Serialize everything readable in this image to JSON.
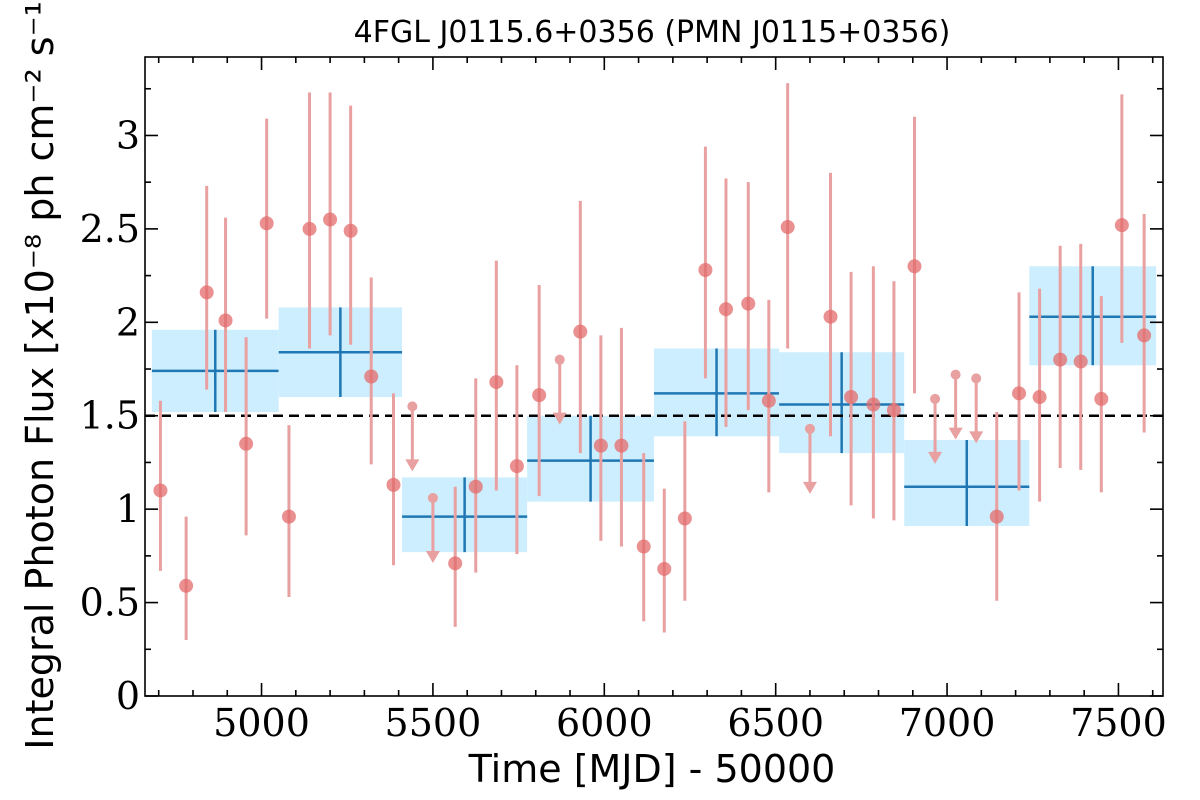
{
  "chart_data": {
    "type": "scatter",
    "title": "4FGL J0115.6+0356 (PMN J0115+0356)",
    "xlabel": "Time [MJD] - 50000",
    "ylabel": "Integral Photon Flux [x10⁻⁸ ph cm⁻² s⁻¹]",
    "xlim": [
      4660,
      7630
    ],
    "ylim": [
      0,
      3.42
    ],
    "x_ticks": [
      5000,
      5500,
      6000,
      6500,
      7000,
      7500
    ],
    "x_tick_labels": [
      "5000",
      "5500",
      "6000",
      "6500",
      "7000",
      "7500"
    ],
    "y_ticks": [
      0,
      0.5,
      1,
      1.5,
      2,
      2.5,
      3
    ],
    "y_tick_labels": [
      "0",
      "0.5",
      "1",
      "1.5",
      "2",
      "2.5",
      "3"
    ],
    "reference_line": 1.5,
    "colors": {
      "points": "#e36b6b",
      "error_bars": "#e8a0a0",
      "blocks_fill": "#cdeefe",
      "blocks_line": "#1f77b4",
      "reference_line": "#000000"
    },
    "points": [
      {
        "x": 4705,
        "y": 1.1,
        "ylo": 0.67,
        "yhi": 1.58
      },
      {
        "x": 4780,
        "y": 0.59,
        "ylo": 0.3,
        "yhi": 0.96
      },
      {
        "x": 4840,
        "y": 2.16,
        "ylo": 1.64,
        "yhi": 2.73
      },
      {
        "x": 4895,
        "y": 2.01,
        "ylo": 1.52,
        "yhi": 2.56
      },
      {
        "x": 4955,
        "y": 1.35,
        "ylo": 0.86,
        "yhi": 1.92
      },
      {
        "x": 5015,
        "y": 2.53,
        "ylo": 2.02,
        "yhi": 3.09
      },
      {
        "x": 5080,
        "y": 0.96,
        "ylo": 0.53,
        "yhi": 1.45
      },
      {
        "x": 5140,
        "y": 2.5,
        "ylo": 1.86,
        "yhi": 3.23
      },
      {
        "x": 5200,
        "y": 2.55,
        "ylo": 1.93,
        "yhi": 3.23
      },
      {
        "x": 5260,
        "y": 2.49,
        "ylo": 1.88,
        "yhi": 3.16
      },
      {
        "x": 5320,
        "y": 1.71,
        "ylo": 1.24,
        "yhi": 2.24
      },
      {
        "x": 5385,
        "y": 1.13,
        "ylo": 0.7,
        "yhi": 1.62
      },
      {
        "x": 5440,
        "y": 1.55,
        "ul": true
      },
      {
        "x": 5500,
        "y": 1.06,
        "ul": true
      },
      {
        "x": 5565,
        "y": 0.71,
        "ylo": 0.37,
        "yhi": 1.12
      },
      {
        "x": 5625,
        "y": 1.12,
        "ylo": 0.66,
        "yhi": 1.7
      },
      {
        "x": 5685,
        "y": 1.68,
        "ylo": 1.1,
        "yhi": 2.33
      },
      {
        "x": 5745,
        "y": 1.23,
        "ylo": 0.76,
        "yhi": 1.77
      },
      {
        "x": 5810,
        "y": 1.61,
        "ylo": 1.07,
        "yhi": 2.2
      },
      {
        "x": 5870,
        "y": 1.8,
        "ul": true
      },
      {
        "x": 5930,
        "y": 1.95,
        "ylo": 1.3,
        "yhi": 2.65
      },
      {
        "x": 5990,
        "y": 1.34,
        "ylo": 0.83,
        "yhi": 1.93
      },
      {
        "x": 6050,
        "y": 1.34,
        "ylo": 0.8,
        "yhi": 1.97
      },
      {
        "x": 6115,
        "y": 0.8,
        "ylo": 0.4,
        "yhi": 1.3
      },
      {
        "x": 6175,
        "y": 0.68,
        "ylo": 0.34,
        "yhi": 1.11
      },
      {
        "x": 6235,
        "y": 0.95,
        "ylo": 0.51,
        "yhi": 1.47
      },
      {
        "x": 6295,
        "y": 2.28,
        "ylo": 1.7,
        "yhi": 2.94
      },
      {
        "x": 6355,
        "y": 2.07,
        "ylo": 1.44,
        "yhi": 2.77
      },
      {
        "x": 6420,
        "y": 2.1,
        "ylo": 1.53,
        "yhi": 2.75
      },
      {
        "x": 6480,
        "y": 1.58,
        "ylo": 1.09,
        "yhi": 2.12
      },
      {
        "x": 6535,
        "y": 2.51,
        "ylo": 1.86,
        "yhi": 3.28
      },
      {
        "x": 6600,
        "y": 1.43,
        "ul": true
      },
      {
        "x": 6660,
        "y": 2.03,
        "ylo": 1.39,
        "yhi": 2.8
      },
      {
        "x": 6720,
        "y": 1.6,
        "ylo": 1.02,
        "yhi": 2.27
      },
      {
        "x": 6785,
        "y": 1.56,
        "ylo": 0.95,
        "yhi": 2.3
      },
      {
        "x": 6845,
        "y": 1.53,
        "ylo": 0.94,
        "yhi": 2.22
      },
      {
        "x": 6905,
        "y": 2.3,
        "ylo": 1.62,
        "yhi": 3.1
      },
      {
        "x": 6965,
        "y": 1.59,
        "ul": true
      },
      {
        "x": 7025,
        "y": 1.72,
        "ul": true
      },
      {
        "x": 7085,
        "y": 1.7,
        "ul": true
      },
      {
        "x": 7145,
        "y": 0.96,
        "ylo": 0.51,
        "yhi": 1.52
      },
      {
        "x": 7210,
        "y": 1.62,
        "ylo": 1.1,
        "yhi": 2.16
      },
      {
        "x": 7270,
        "y": 1.6,
        "ylo": 1.04,
        "yhi": 2.18
      },
      {
        "x": 7330,
        "y": 1.8,
        "ylo": 1.22,
        "yhi": 2.41
      },
      {
        "x": 7390,
        "y": 1.79,
        "ylo": 1.21,
        "yhi": 2.42
      },
      {
        "x": 7450,
        "y": 1.59,
        "ylo": 1.09,
        "yhi": 2.14
      },
      {
        "x": 7510,
        "y": 2.52,
        "ylo": 1.89,
        "yhi": 3.22
      },
      {
        "x": 7575,
        "y": 1.93,
        "ylo": 1.41,
        "yhi": 2.58
      }
    ],
    "blocks": [
      {
        "x0": 4680,
        "x1": 5050,
        "y": 1.74,
        "ylo": 1.52,
        "yhi": 1.96
      },
      {
        "x0": 5050,
        "x1": 5410,
        "y": 1.84,
        "ylo": 1.6,
        "yhi": 2.08
      },
      {
        "x0": 5410,
        "x1": 5775,
        "y": 0.96,
        "ylo": 0.77,
        "yhi": 1.17
      },
      {
        "x0": 5775,
        "x1": 6145,
        "y": 1.26,
        "ylo": 1.04,
        "yhi": 1.5
      },
      {
        "x0": 6145,
        "x1": 6510,
        "y": 1.62,
        "ylo": 1.39,
        "yhi": 1.86
      },
      {
        "x0": 6510,
        "x1": 6875,
        "y": 1.56,
        "ylo": 1.3,
        "yhi": 1.84
      },
      {
        "x0": 6875,
        "x1": 7240,
        "y": 1.12,
        "ylo": 0.91,
        "yhi": 1.37
      },
      {
        "x0": 7240,
        "x1": 7610,
        "y": 2.03,
        "ylo": 1.77,
        "yhi": 2.3
      }
    ]
  }
}
